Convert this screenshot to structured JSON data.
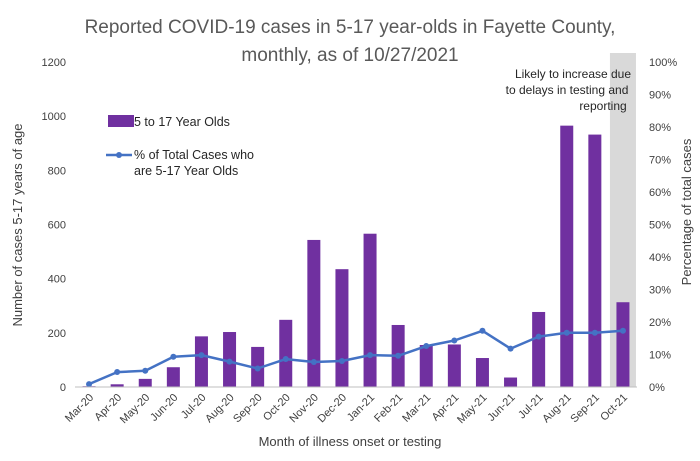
{
  "chart_data": {
    "type": "bar",
    "title_lines": [
      "Reported COVID-19 cases in 5-17 year-olds in Fayette County,",
      "monthly, as of 10/27/2021"
    ],
    "xlabel": "Month of illness onset or testing",
    "ylabel": "Number of cases 5-17 years of age",
    "y2label": "Percentage of total cases",
    "categories": [
      "Mar-20",
      "Apr-20",
      "May-20",
      "Jun-20",
      "Jul-20",
      "Aug-20",
      "Sep-20",
      "Oct-20",
      "Nov-20",
      "Dec-20",
      "Jan-21",
      "Feb-21",
      "Mar-21",
      "Apr-21",
      "May-21",
      "Jun-21",
      "Jul-21",
      "Aug-21",
      "Sep-21",
      "Oct-21"
    ],
    "ylim": [
      0,
      1200
    ],
    "yticks": [
      0,
      200,
      400,
      600,
      800,
      1000,
      1200
    ],
    "y2lim": [
      0,
      100
    ],
    "y2ticks": [
      "0%",
      "10%",
      "20%",
      "30%",
      "40%",
      "50%",
      "60%",
      "70%",
      "80%",
      "90%",
      "100%"
    ],
    "series": [
      {
        "name": "5 to 17 Year Olds",
        "type": "bar",
        "color": "#7030a0",
        "values": [
          3,
          10,
          30,
          73,
          187,
          203,
          148,
          248,
          543,
          435,
          566,
          229,
          155,
          157,
          107,
          35,
          277,
          965,
          932,
          313
        ]
      },
      {
        "name_lines": [
          "% of Total Cases who",
          "are 5-17 Year Olds"
        ],
        "type": "line",
        "axis": "secondary",
        "color": "#4472c4",
        "values": [
          0.9,
          4.6,
          5.0,
          9.3,
          9.8,
          7.8,
          5.7,
          8.6,
          7.7,
          8.0,
          9.8,
          9.6,
          12.6,
          14.3,
          17.3,
          11.8,
          15.5,
          16.7,
          16.7,
          17.3
        ]
      }
    ],
    "highlight": {
      "category": "Oct-21",
      "color": "#d9d9d9",
      "annotation_lines": [
        "Likely to increase due",
        "to delays in testing and",
        "reporting"
      ]
    },
    "grid": false,
    "legend_position": "upper-left inside plot"
  }
}
